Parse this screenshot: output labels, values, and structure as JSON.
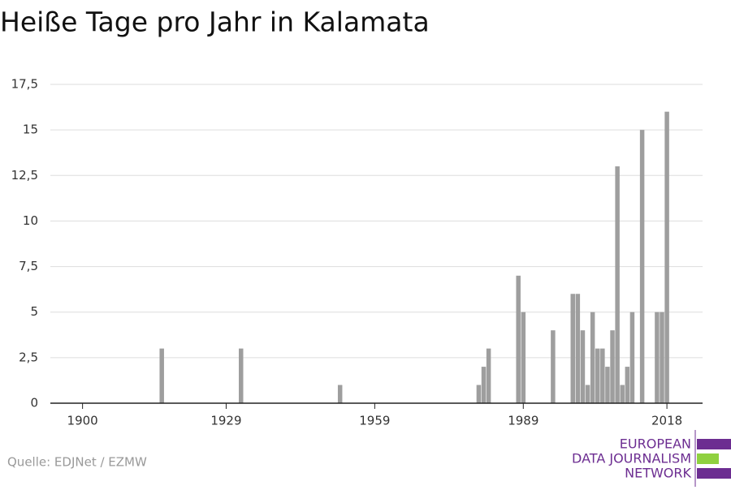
{
  "chart_data": {
    "type": "bar",
    "title": "Heiße Tage pro Jahr in Kalamata",
    "x": [
      1916,
      1932,
      1952,
      1980,
      1981,
      1982,
      1988,
      1989,
      1995,
      1999,
      2000,
      2001,
      2002,
      2003,
      2004,
      2005,
      2006,
      2007,
      2008,
      2009,
      2010,
      2011,
      2013,
      2016,
      2017,
      2018
    ],
    "values": [
      3,
      3,
      1,
      1,
      2,
      3,
      7,
      5,
      4,
      6,
      6,
      4,
      1,
      5,
      3,
      3,
      2,
      4,
      13,
      1,
      2,
      5,
      15,
      5,
      5,
      16
    ],
    "color": "#9e9e9e",
    "xlim": [
      1893.5,
      2025.2
    ],
    "xticks": [
      1900,
      1929,
      1959,
      1989,
      2018
    ],
    "ylim": [
      0,
      17.5
    ],
    "yticks": [
      0,
      {
        "value": 2.5,
        "label": "2,5"
      },
      5,
      {
        "value": 7.5,
        "label": "7,5"
      },
      10,
      {
        "value": 12.5,
        "label": "12,5"
      },
      15,
      {
        "value": 17.5,
        "label": "17,5"
      }
    ],
    "grid": true
  },
  "footer": {
    "source": "Quelle: EDJNet / EZMW",
    "logo": [
      "EUROPEAN",
      "DATA JOURNALISM",
      "NETWORK"
    ]
  }
}
